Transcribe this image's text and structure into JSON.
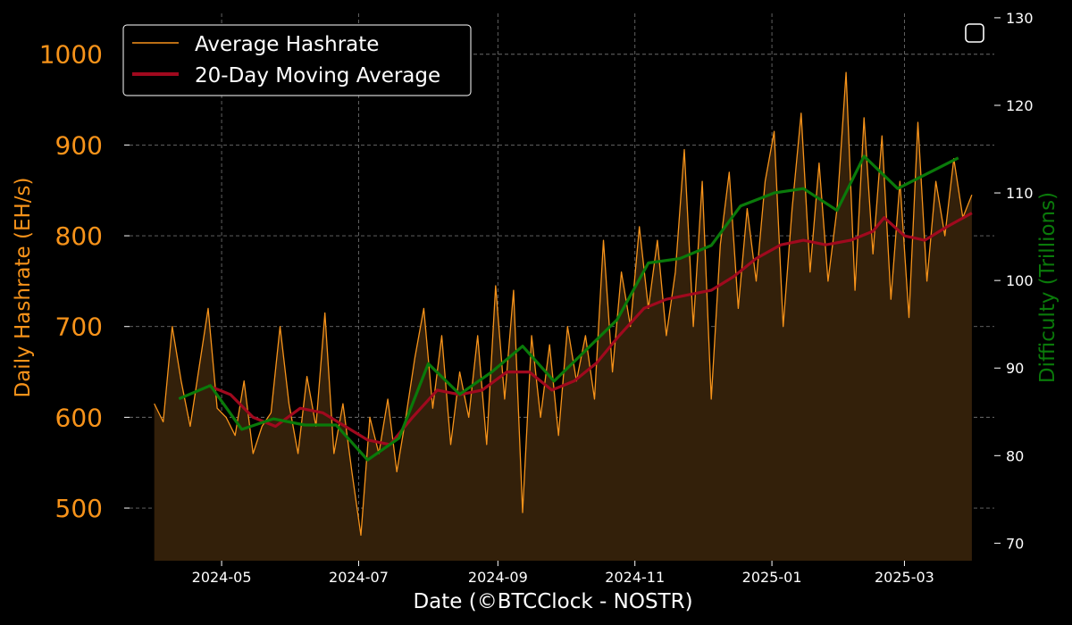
{
  "chart_data": {
    "type": "line",
    "xlabel": "Date (©BTCClock - NOSTR)",
    "ylabel": "Daily Hashrate (EH/s)",
    "y2label": "Difficulty (Trillions)",
    "x_ticks": [
      "2024-05",
      "2024-07",
      "2024-09",
      "2024-11",
      "2025-01",
      "2025-03"
    ],
    "y_ticks": [
      500,
      600,
      700,
      800,
      900,
      1000
    ],
    "y2_ticks": [
      70,
      80,
      90,
      100,
      110,
      120,
      130
    ],
    "xlim": [
      "2024-03-21",
      "2025-04-10"
    ],
    "ylim": [
      442,
      1045
    ],
    "y2lim": [
      68,
      130.5
    ],
    "grid": true,
    "legend_position": "top-left",
    "colors": {
      "hashrate": "#f7931a",
      "hashrate_fill": "#33200a",
      "moving_average": "#a0091e",
      "difficulty": "#0a7a0a",
      "y_axis_label": "#f7931a",
      "y2_axis_label": "#0a7a0a",
      "grid": "#6b6b6b"
    },
    "series": [
      {
        "name": "Average Hashrate",
        "axis": "left",
        "style": "thin-line-with-area",
        "points": [
          [
            "2024-04-01",
            615
          ],
          [
            "2024-04-05",
            595
          ],
          [
            "2024-04-09",
            700
          ],
          [
            "2024-04-13",
            640
          ],
          [
            "2024-04-17",
            590
          ],
          [
            "2024-04-21",
            655
          ],
          [
            "2024-04-25",
            720
          ],
          [
            "2024-04-29",
            610
          ],
          [
            "2024-05-03",
            600
          ],
          [
            "2024-05-07",
            580
          ],
          [
            "2024-05-11",
            640
          ],
          [
            "2024-05-15",
            560
          ],
          [
            "2024-05-19",
            590
          ],
          [
            "2024-05-23",
            605
          ],
          [
            "2024-05-27",
            700
          ],
          [
            "2024-05-31",
            615
          ],
          [
            "2024-06-04",
            560
          ],
          [
            "2024-06-08",
            645
          ],
          [
            "2024-06-12",
            590
          ],
          [
            "2024-06-16",
            715
          ],
          [
            "2024-06-20",
            560
          ],
          [
            "2024-06-24",
            615
          ],
          [
            "2024-06-28",
            540
          ],
          [
            "2024-07-02",
            470
          ],
          [
            "2024-07-06",
            600
          ],
          [
            "2024-07-10",
            560
          ],
          [
            "2024-07-14",
            620
          ],
          [
            "2024-07-18",
            540
          ],
          [
            "2024-07-22",
            600
          ],
          [
            "2024-07-26",
            665
          ],
          [
            "2024-07-30",
            720
          ],
          [
            "2024-08-03",
            610
          ],
          [
            "2024-08-07",
            690
          ],
          [
            "2024-08-11",
            570
          ],
          [
            "2024-08-15",
            650
          ],
          [
            "2024-08-19",
            600
          ],
          [
            "2024-08-23",
            690
          ],
          [
            "2024-08-27",
            570
          ],
          [
            "2024-08-31",
            745
          ],
          [
            "2024-09-04",
            620
          ],
          [
            "2024-09-08",
            740
          ],
          [
            "2024-09-12",
            495
          ],
          [
            "2024-09-16",
            690
          ],
          [
            "2024-09-20",
            600
          ],
          [
            "2024-09-24",
            680
          ],
          [
            "2024-09-28",
            580
          ],
          [
            "2024-10-02",
            700
          ],
          [
            "2024-10-06",
            640
          ],
          [
            "2024-10-10",
            690
          ],
          [
            "2024-10-14",
            620
          ],
          [
            "2024-10-18",
            795
          ],
          [
            "2024-10-22",
            650
          ],
          [
            "2024-10-26",
            760
          ],
          [
            "2024-10-30",
            700
          ],
          [
            "2024-11-03",
            810
          ],
          [
            "2024-11-07",
            720
          ],
          [
            "2024-11-11",
            795
          ],
          [
            "2024-11-15",
            690
          ],
          [
            "2024-11-19",
            760
          ],
          [
            "2024-11-23",
            895
          ],
          [
            "2024-11-27",
            700
          ],
          [
            "2024-12-01",
            860
          ],
          [
            "2024-12-05",
            620
          ],
          [
            "2024-12-09",
            790
          ],
          [
            "2024-12-13",
            870
          ],
          [
            "2024-12-17",
            720
          ],
          [
            "2024-12-21",
            830
          ],
          [
            "2024-12-25",
            750
          ],
          [
            "2024-12-29",
            860
          ],
          [
            "2025-01-02",
            915
          ],
          [
            "2025-01-06",
            700
          ],
          [
            "2025-01-10",
            830
          ],
          [
            "2025-01-14",
            935
          ],
          [
            "2025-01-18",
            760
          ],
          [
            "2025-01-22",
            880
          ],
          [
            "2025-01-26",
            750
          ],
          [
            "2025-01-30",
            830
          ],
          [
            "2025-02-03",
            980
          ],
          [
            "2025-02-07",
            740
          ],
          [
            "2025-02-11",
            930
          ],
          [
            "2025-02-15",
            780
          ],
          [
            "2025-02-19",
            910
          ],
          [
            "2025-02-23",
            730
          ],
          [
            "2025-02-27",
            860
          ],
          [
            "2025-03-03",
            710
          ],
          [
            "2025-03-07",
            925
          ],
          [
            "2025-03-11",
            750
          ],
          [
            "2025-03-15",
            860
          ],
          [
            "2025-03-19",
            800
          ],
          [
            "2025-03-23",
            885
          ],
          [
            "2025-03-27",
            820
          ],
          [
            "2025-03-31",
            845
          ]
        ]
      },
      {
        "name": "20-Day Moving Average",
        "axis": "left",
        "style": "thick-line",
        "points": [
          [
            "2024-04-25",
            635
          ],
          [
            "2024-05-05",
            625
          ],
          [
            "2024-05-15",
            600
          ],
          [
            "2024-05-25",
            590
          ],
          [
            "2024-06-05",
            610
          ],
          [
            "2024-06-15",
            605
          ],
          [
            "2024-06-25",
            590
          ],
          [
            "2024-07-05",
            575
          ],
          [
            "2024-07-15",
            570
          ],
          [
            "2024-07-25",
            600
          ],
          [
            "2024-08-05",
            630
          ],
          [
            "2024-08-15",
            625
          ],
          [
            "2024-08-25",
            630
          ],
          [
            "2024-09-05",
            650
          ],
          [
            "2024-09-15",
            650
          ],
          [
            "2024-09-25",
            630
          ],
          [
            "2024-10-05",
            640
          ],
          [
            "2024-10-15",
            660
          ],
          [
            "2024-10-25",
            690
          ],
          [
            "2024-11-05",
            720
          ],
          [
            "2024-11-15",
            730
          ],
          [
            "2024-11-25",
            735
          ],
          [
            "2024-12-05",
            740
          ],
          [
            "2024-12-15",
            755
          ],
          [
            "2024-12-25",
            775
          ],
          [
            "2025-01-05",
            790
          ],
          [
            "2025-01-15",
            795
          ],
          [
            "2025-01-25",
            790
          ],
          [
            "2025-02-05",
            795
          ],
          [
            "2025-02-15",
            805
          ],
          [
            "2025-02-20",
            820
          ],
          [
            "2025-03-01",
            800
          ],
          [
            "2025-03-10",
            795
          ],
          [
            "2025-03-20",
            810
          ],
          [
            "2025-03-31",
            825
          ]
        ]
      },
      {
        "name": "Difficulty",
        "axis": "right",
        "style": "thick-line",
        "points": [
          [
            "2024-04-12",
            86.5
          ],
          [
            "2024-04-26",
            88.0
          ],
          [
            "2024-05-10",
            83.0
          ],
          [
            "2024-05-24",
            84.2
          ],
          [
            "2024-06-07",
            83.5
          ],
          [
            "2024-06-21",
            83.5
          ],
          [
            "2024-07-05",
            79.5
          ],
          [
            "2024-07-19",
            82.0
          ],
          [
            "2024-08-01",
            90.5
          ],
          [
            "2024-08-15",
            87.0
          ],
          [
            "2024-08-29",
            89.5
          ],
          [
            "2024-09-12",
            92.5
          ],
          [
            "2024-09-26",
            88.5
          ],
          [
            "2024-10-10",
            92.0
          ],
          [
            "2024-10-24",
            95.5
          ],
          [
            "2024-11-07",
            102.0
          ],
          [
            "2024-11-21",
            102.5
          ],
          [
            "2024-12-05",
            104.0
          ],
          [
            "2024-12-18",
            108.5
          ],
          [
            "2025-01-02",
            110.0
          ],
          [
            "2025-01-15",
            110.5
          ],
          [
            "2025-01-30",
            108.0
          ],
          [
            "2025-02-11",
            114.2
          ],
          [
            "2025-02-26",
            110.5
          ],
          [
            "2025-03-25",
            114.0
          ]
        ]
      }
    ],
    "legend": [
      {
        "label": "Average Hashrate",
        "series": 0
      },
      {
        "label": "20-Day Moving Average",
        "series": 1
      }
    ]
  }
}
